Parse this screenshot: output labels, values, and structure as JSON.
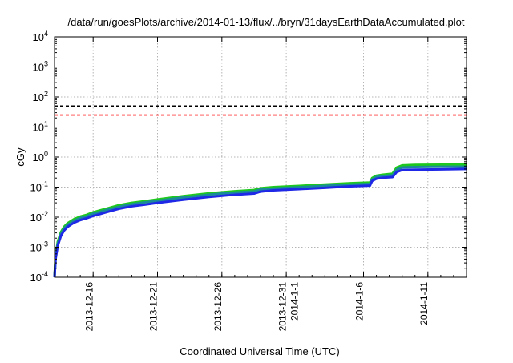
{
  "chart_data": {
    "type": "line",
    "title": "/data/run/goesPlots/archive/2014-01-13/flux/../bryn/31daysEarthDataAccumulated.plot",
    "xlabel": "Coordinated Universal Time (UTC)",
    "ylabel": "cGy",
    "y_scale": "log",
    "ylim": [
      0.0001,
      10000
    ],
    "xlim": [
      "2013-12-13T00:00",
      "2014-01-14T00:00"
    ],
    "y_ticks": [
      {
        "value": 0.0001,
        "base": "10",
        "exp": "-4"
      },
      {
        "value": 0.001,
        "base": "10",
        "exp": "-3"
      },
      {
        "value": 0.01,
        "base": "10",
        "exp": "-2"
      },
      {
        "value": 0.1,
        "base": "10",
        "exp": "-1"
      },
      {
        "value": 1,
        "base": "10",
        "exp": "0"
      },
      {
        "value": 10,
        "base": "10",
        "exp": "1"
      },
      {
        "value": 100,
        "base": "10",
        "exp": "2"
      },
      {
        "value": 1000,
        "base": "10",
        "exp": "3"
      },
      {
        "value": 10000,
        "base": "10",
        "exp": "4"
      }
    ],
    "x_ticks": [
      {
        "date": "2013-12-16",
        "lines": [
          "2013-12-16"
        ]
      },
      {
        "date": "2013-12-21",
        "lines": [
          "2013-12-21"
        ]
      },
      {
        "date": "2013-12-26",
        "lines": [
          "2013-12-26"
        ]
      },
      {
        "date": "2013-12-31",
        "lines": [
          "2013-12-31",
          "2014-1-1"
        ]
      },
      {
        "date": "2014-01-06",
        "lines": [
          "2014-1-6"
        ]
      },
      {
        "date": "2014-01-11",
        "lines": [
          "2014-1-11"
        ]
      }
    ],
    "grid": true,
    "legend": "none",
    "reference_lines": [
      {
        "y": 50,
        "color": "#000000",
        "style": "dashed"
      },
      {
        "y": 25,
        "color": "#ff0000",
        "style": "dashed"
      }
    ],
    "series": [
      {
        "color": "#1ec81e",
        "x": [
          "2013-12-13T00:00",
          "2013-12-13T02:00",
          "2013-12-13T06:00",
          "2013-12-13T12:00",
          "2013-12-13T18:00",
          "2013-12-14T00:00",
          "2013-12-14T12:00",
          "2013-12-15T00:00",
          "2013-12-15T12:00",
          "2013-12-16T00:00",
          "2013-12-17T00:00",
          "2013-12-18T00:00",
          "2013-12-19T00:00",
          "2013-12-20T00:00",
          "2013-12-21T00:00",
          "2013-12-23T00:00",
          "2013-12-25T00:00",
          "2013-12-27T00:00",
          "2013-12-28T12:00",
          "2013-12-29T00:00",
          "2013-12-30T00:00",
          "2014-01-01T00:00",
          "2014-01-03T00:00",
          "2014-01-05T00:00",
          "2014-01-06T12:00",
          "2014-01-06T16:00",
          "2014-01-07T00:00",
          "2014-01-07T12:00",
          "2014-01-08T06:00",
          "2014-01-08T14:00",
          "2014-01-09T00:00",
          "2014-01-10T00:00",
          "2014-01-12T00:00",
          "2014-01-14T00:00"
        ],
        "y": [
          0.0001,
          0.0005,
          0.0015,
          0.0032,
          0.0048,
          0.0062,
          0.0085,
          0.0105,
          0.012,
          0.0145,
          0.019,
          0.025,
          0.03,
          0.034,
          0.039,
          0.05,
          0.062,
          0.073,
          0.08,
          0.092,
          0.1,
          0.11,
          0.122,
          0.135,
          0.142,
          0.2,
          0.24,
          0.26,
          0.28,
          0.45,
          0.53,
          0.55,
          0.56,
          0.57
        ]
      },
      {
        "color": "#1a8a9a",
        "x": [
          "2013-12-13T00:00",
          "2013-12-13T02:00",
          "2013-12-13T06:00",
          "2013-12-13T12:00",
          "2013-12-13T18:00",
          "2013-12-14T00:00",
          "2013-12-14T12:00",
          "2013-12-15T00:00",
          "2013-12-15T12:00",
          "2013-12-16T00:00",
          "2013-12-17T00:00",
          "2013-12-18T00:00",
          "2013-12-19T00:00",
          "2013-12-20T00:00",
          "2013-12-21T00:00",
          "2013-12-23T00:00",
          "2013-12-25T00:00",
          "2013-12-27T00:00",
          "2013-12-28T12:00",
          "2013-12-29T00:00",
          "2013-12-30T00:00",
          "2014-01-01T00:00",
          "2014-01-03T00:00",
          "2014-01-05T00:00",
          "2014-01-06T12:00",
          "2014-01-06T16:00",
          "2014-01-07T00:00",
          "2014-01-07T12:00",
          "2014-01-08T06:00",
          "2014-01-08T14:00",
          "2014-01-09T00:00",
          "2014-01-10T00:00",
          "2014-01-12T00:00",
          "2014-01-14T00:00"
        ],
        "y": [
          0.0001,
          0.00045,
          0.0013,
          0.0028,
          0.0042,
          0.0055,
          0.0076,
          0.0093,
          0.0107,
          0.013,
          0.017,
          0.022,
          0.027,
          0.031,
          0.035,
          0.045,
          0.056,
          0.066,
          0.072,
          0.083,
          0.09,
          0.099,
          0.11,
          0.122,
          0.128,
          0.18,
          0.215,
          0.235,
          0.25,
          0.38,
          0.45,
          0.465,
          0.475,
          0.48
        ]
      },
      {
        "color": "#1e28e6",
        "x": [
          "2013-12-13T00:00",
          "2013-12-13T02:00",
          "2013-12-13T06:00",
          "2013-12-13T12:00",
          "2013-12-13T18:00",
          "2013-12-14T00:00",
          "2013-12-14T12:00",
          "2013-12-15T00:00",
          "2013-12-15T12:00",
          "2013-12-16T00:00",
          "2013-12-17T00:00",
          "2013-12-18T00:00",
          "2013-12-19T00:00",
          "2013-12-20T00:00",
          "2013-12-21T00:00",
          "2013-12-23T00:00",
          "2013-12-25T00:00",
          "2013-12-27T00:00",
          "2013-12-28T12:00",
          "2013-12-29T00:00",
          "2013-12-30T00:00",
          "2014-01-01T00:00",
          "2014-01-03T00:00",
          "2014-01-05T00:00",
          "2014-01-06T12:00",
          "2014-01-06T16:00",
          "2014-01-07T00:00",
          "2014-01-07T12:00",
          "2014-01-08T06:00",
          "2014-01-08T14:00",
          "2014-01-09T00:00",
          "2014-01-10T00:00",
          "2014-01-12T00:00",
          "2014-01-14T00:00"
        ],
        "y": [
          0.0001,
          0.0004,
          0.0011,
          0.0024,
          0.0036,
          0.0047,
          0.0065,
          0.008,
          0.0092,
          0.011,
          0.0145,
          0.019,
          0.023,
          0.026,
          0.03,
          0.038,
          0.047,
          0.056,
          0.061,
          0.071,
          0.078,
          0.086,
          0.095,
          0.106,
          0.112,
          0.16,
          0.19,
          0.205,
          0.215,
          0.32,
          0.37,
          0.38,
          0.39,
          0.4
        ]
      }
    ]
  }
}
